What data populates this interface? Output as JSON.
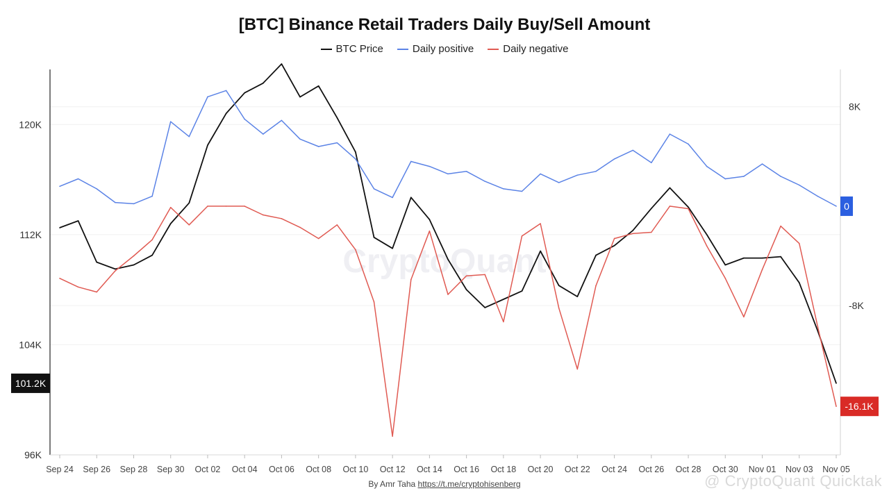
{
  "chart_data": {
    "type": "line",
    "title": "[BTC] Binance Retail Traders Daily Buy/Sell Amount",
    "legend": [
      "BTC Price",
      "Daily positive",
      "Daily negative"
    ],
    "legend_position": "top-center",
    "x_ticks": [
      "Sep 24",
      "Sep 26",
      "Sep 28",
      "Sep 30",
      "Oct 02",
      "Oct 04",
      "Oct 06",
      "Oct 08",
      "Oct 10",
      "Oct 12",
      "Oct 14",
      "Oct 16",
      "Oct 18",
      "Oct 20",
      "Oct 22",
      "Oct 24",
      "Oct 26",
      "Oct 28",
      "Oct 30",
      "Nov 01",
      "Nov 03",
      "Nov 05"
    ],
    "y_left_ticks": [
      "96K",
      "104K",
      "112K",
      "120K"
    ],
    "y_right_ticks": [
      "8K",
      "-8K"
    ],
    "y_left_range": [
      96000,
      124000
    ],
    "y_right_range": [
      -20000,
      11000
    ],
    "current_price_label": "101.2K",
    "positive_end_label": "0",
    "negative_end_label": "-16.1K",
    "series": [
      {
        "name": "BTC Price",
        "color": "#111111",
        "axis": "left",
        "x": [
          "2025-09-24",
          "2025-09-25",
          "2025-09-26",
          "2025-09-27",
          "2025-09-28",
          "2025-09-29",
          "2025-09-30",
          "2025-10-01",
          "2025-10-02",
          "2025-10-03",
          "2025-10-04",
          "2025-10-05",
          "2025-10-06",
          "2025-10-07",
          "2025-10-08",
          "2025-10-09",
          "2025-10-10",
          "2025-10-11",
          "2025-10-12",
          "2025-10-13",
          "2025-10-14",
          "2025-10-15",
          "2025-10-16",
          "2025-10-17",
          "2025-10-18",
          "2025-10-19",
          "2025-10-20",
          "2025-10-21",
          "2025-10-22",
          "2025-10-23",
          "2025-10-24",
          "2025-10-25",
          "2025-10-26",
          "2025-10-27",
          "2025-10-28",
          "2025-10-29",
          "2025-10-30",
          "2025-10-31",
          "2025-11-01",
          "2025-11-02",
          "2025-11-03",
          "2025-11-04",
          "2025-11-05"
        ],
        "values": [
          112500,
          113000,
          110000,
          109500,
          109800,
          110500,
          112800,
          114300,
          118500,
          120800,
          122300,
          123000,
          124400,
          122000,
          122800,
          120500,
          118000,
          111800,
          111000,
          114700,
          113100,
          110200,
          108000,
          106700,
          107300,
          107900,
          110800,
          108300,
          107500,
          110500,
          111200,
          112300,
          113900,
          115400,
          114000,
          112000,
          109800,
          110300,
          110300,
          110400,
          108500,
          105000,
          101200
        ]
      },
      {
        "name": "Daily positive",
        "color": "#5b83e6",
        "axis": "right",
        "x": [
          "2025-09-24",
          "2025-09-25",
          "2025-09-26",
          "2025-09-27",
          "2025-09-28",
          "2025-09-29",
          "2025-09-30",
          "2025-10-01",
          "2025-10-02",
          "2025-10-03",
          "2025-10-04",
          "2025-10-05",
          "2025-10-06",
          "2025-10-07",
          "2025-10-08",
          "2025-10-09",
          "2025-10-10",
          "2025-10-11",
          "2025-10-12",
          "2025-10-13",
          "2025-10-14",
          "2025-10-15",
          "2025-10-16",
          "2025-10-17",
          "2025-10-18",
          "2025-10-19",
          "2025-10-20",
          "2025-10-21",
          "2025-10-22",
          "2025-10-23",
          "2025-10-24",
          "2025-10-25",
          "2025-10-26",
          "2025-10-27",
          "2025-10-28",
          "2025-10-29",
          "2025-10-30",
          "2025-10-31",
          "2025-11-01",
          "2025-11-02",
          "2025-11-03",
          "2025-11-04",
          "2025-11-05"
        ],
        "values": [
          1600,
          2200,
          1400,
          300,
          200,
          800,
          6800,
          5600,
          8800,
          9300,
          7000,
          5800,
          6900,
          5400,
          4800,
          5100,
          3800,
          1400,
          700,
          3600,
          3200,
          2600,
          2800,
          2000,
          1400,
          1200,
          2600,
          1900,
          2500,
          2800,
          3800,
          4500,
          3500,
          5800,
          5000,
          3200,
          2200,
          2400,
          3400,
          2400,
          1700,
          800,
          0
        ]
      },
      {
        "name": "Daily negative",
        "color": "#e05a52",
        "axis": "right",
        "x": [
          "2025-09-24",
          "2025-09-25",
          "2025-09-26",
          "2025-09-27",
          "2025-09-28",
          "2025-09-29",
          "2025-09-30",
          "2025-10-01",
          "2025-10-02",
          "2025-10-03",
          "2025-10-04",
          "2025-10-05",
          "2025-10-06",
          "2025-10-07",
          "2025-10-08",
          "2025-10-09",
          "2025-10-10",
          "2025-10-11",
          "2025-10-12",
          "2025-10-13",
          "2025-10-14",
          "2025-10-15",
          "2025-10-16",
          "2025-10-17",
          "2025-10-18",
          "2025-10-19",
          "2025-10-20",
          "2025-10-21",
          "2025-10-22",
          "2025-10-23",
          "2025-10-24",
          "2025-10-25",
          "2025-10-26",
          "2025-10-27",
          "2025-10-28",
          "2025-10-29",
          "2025-10-30",
          "2025-10-31",
          "2025-11-01",
          "2025-11-02",
          "2025-11-03",
          "2025-11-04",
          "2025-11-05"
        ],
        "values": [
          -5800,
          -6500,
          -6900,
          -5200,
          -4000,
          -2700,
          -100,
          -1500,
          0,
          0,
          0,
          -700,
          -1000,
          -1700,
          -2600,
          -1500,
          -3500,
          -7700,
          -18500,
          -5900,
          -2000,
          -7100,
          -5600,
          -5500,
          -9300,
          -2400,
          -1400,
          -8200,
          -13100,
          -6400,
          -2600,
          -2200,
          -2100,
          0,
          -200,
          -3200,
          -5800,
          -8900,
          -5100,
          -1600,
          -3000,
          -9700,
          -16100
        ]
      }
    ]
  },
  "watermark": "CryptoQuant",
  "footer": {
    "credit": "By Amr Taha",
    "link": "https://t.me/cryptohisenberg"
  },
  "corner_watermark": "@ CryptoQuant Quicktak"
}
